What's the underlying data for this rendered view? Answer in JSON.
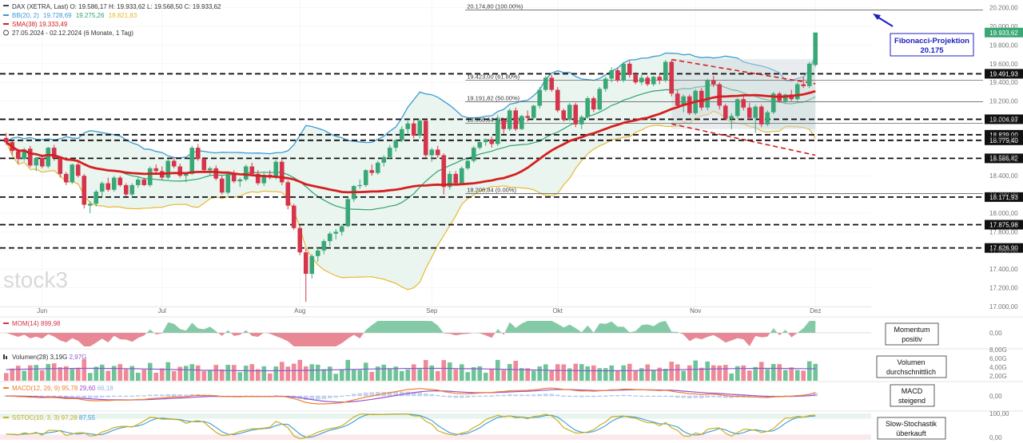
{
  "header": {
    "line1": "DAX (XETRA, Last)  O: 19.586,17  H: 19.933,62  L: 19.568,50  C: 19.933,62",
    "bb_name": "BB(20, 2)",
    "bb_v1": "19.728,69",
    "bb_v2": "19.275,26",
    "bb_v3": "18.821,83",
    "sma_text": "SMA(38)  19.333,49",
    "period_text": "27.05.2024 - 02.12.2024  (6 Monate, 1 Tag)"
  },
  "watermark": "stock3",
  "callouts": {
    "fibonacci": [
      "Fibonacci-Projektion",
      "20.175"
    ],
    "momentum": [
      "Momentum",
      "positiv"
    ],
    "volumen": [
      "Volumen",
      "durchschnittlich"
    ],
    "macd": [
      "MACD",
      "steigend"
    ],
    "stoch": [
      "Slow-Stochastik",
      "überkauft"
    ]
  },
  "colors": {
    "up": "#3aa776",
    "down": "#d4354a",
    "bb": "#3a9bd5",
    "bb_fill": "#e8f4ee",
    "bb_mid": "#2ea36a",
    "bb_lower": "#e8b830",
    "sma": "#d42020",
    "callout": "#2020c0"
  },
  "chart_data": {
    "type": "candlestick",
    "instrument": "DAX (XETRA, Last)",
    "ylim": [
      17000,
      20200
    ],
    "y_ticks": [
      17000,
      17200,
      17400,
      17600,
      17800,
      18000,
      18200,
      18400,
      18600,
      18800,
      19000,
      19200,
      19400,
      19600,
      19800,
      20000,
      20200
    ],
    "y_tick_labels": [
      "17.000,00",
      "17.200,00",
      "17.400,00",
      "17.600,00",
      "17.800,00",
      "18.000,00",
      "18.200,00",
      "18.400,00",
      "18.600,00",
      "18.800,00",
      "19.000,00",
      "19.200,00",
      "19.400,00",
      "19.600,00",
      "19.800,00",
      "20.000,00",
      "20.200,00"
    ],
    "months": [
      {
        "label": "Jun",
        "bar": 6
      },
      {
        "label": "Jul",
        "bar": 26
      },
      {
        "label": "Aug",
        "bar": 49
      },
      {
        "label": "Sep",
        "bar": 71
      },
      {
        "label": "Okt",
        "bar": 92
      },
      {
        "label": "Nov",
        "bar": 115
      },
      {
        "label": "Dez",
        "bar": 135
      }
    ],
    "last_price": {
      "value": 19933.62,
      "label": "19.933,62"
    },
    "hlines": [
      {
        "value": 19491.93,
        "label": "19.491,93"
      },
      {
        "value": 19004.97,
        "label": "19.004,97"
      },
      {
        "value": 18839.0,
        "label": "18.839,00"
      },
      {
        "value": 18779.4,
        "label": "18.779,40"
      },
      {
        "value": 18586.42,
        "label": "18.586,42"
      },
      {
        "value": 18171.93,
        "label": "18.171,93"
      },
      {
        "value": 17875.98,
        "label": "17.875,98"
      },
      {
        "value": 17626.9,
        "label": "17.626,90"
      }
    ],
    "fib_levels": [
      {
        "value": 20174.8,
        "label": "20.174,80 (100.00%)"
      },
      {
        "value": 19423.0,
        "label": "19.423,00 (61.80%)"
      },
      {
        "value": 19191.82,
        "label": "19.191,82 (50.00%)"
      },
      {
        "value": 18960.64,
        "label": "18.960,64 (38.20%)"
      },
      {
        "value": 18208.84,
        "label": "18.208,84 (0.00%)"
      }
    ],
    "fib_start_bar": 77,
    "triangle": {
      "upper": [
        [
          111,
          19645
        ],
        [
          135,
          19385
        ]
      ],
      "lower": [
        [
          111,
          18955
        ],
        [
          135,
          18620
        ]
      ]
    },
    "shaded_box": {
      "from_bar": 111,
      "to_bar": 135,
      "low": 18900,
      "high": 19650
    },
    "candles": [
      [
        18805,
        18860,
        18730,
        18758
      ],
      [
        18760,
        18770,
        18620,
        18665
      ],
      [
        18660,
        18690,
        18530,
        18580
      ],
      [
        18580,
        18700,
        18560,
        18680
      ],
      [
        18690,
        18720,
        18490,
        18510
      ],
      [
        18510,
        18600,
        18450,
        18590
      ],
      [
        18590,
        18610,
        18480,
        18500
      ],
      [
        18500,
        18710,
        18480,
        18700
      ],
      [
        18700,
        18730,
        18560,
        18590
      ],
      [
        18590,
        18610,
        18380,
        18420
      ],
      [
        18420,
        18440,
        18300,
        18330
      ],
      [
        18330,
        18530,
        18310,
        18520
      ],
      [
        18520,
        18550,
        18380,
        18400
      ],
      [
        18400,
        18420,
        18050,
        18090
      ],
      [
        18080,
        18130,
        18000,
        18100
      ],
      [
        18100,
        18250,
        18070,
        18230
      ],
      [
        18230,
        18340,
        18180,
        18320
      ],
      [
        18320,
        18380,
        18230,
        18250
      ],
      [
        18250,
        18400,
        18230,
        18380
      ],
      [
        18380,
        18400,
        18280,
        18300
      ],
      [
        18300,
        18320,
        18180,
        18200
      ],
      [
        18200,
        18320,
        18170,
        18300
      ],
      [
        18300,
        18380,
        18270,
        18360
      ],
      [
        18360,
        18380,
        18290,
        18300
      ],
      [
        18300,
        18500,
        18280,
        18480
      ],
      [
        18480,
        18520,
        18420,
        18450
      ],
      [
        18450,
        18500,
        18360,
        18380
      ],
      [
        18380,
        18580,
        18360,
        18560
      ],
      [
        18560,
        18600,
        18480,
        18500
      ],
      [
        18500,
        18530,
        18380,
        18400
      ],
      [
        18400,
        18440,
        18330,
        18420
      ],
      [
        18420,
        18720,
        18410,
        18700
      ],
      [
        18700,
        18740,
        18560,
        18580
      ],
      [
        18580,
        18600,
        18440,
        18460
      ],
      [
        18460,
        18500,
        18400,
        18480
      ],
      [
        18480,
        18510,
        18350,
        18370
      ],
      [
        18370,
        18400,
        18200,
        18220
      ],
      [
        18220,
        18430,
        18200,
        18420
      ],
      [
        18420,
        18460,
        18320,
        18340
      ],
      [
        18340,
        18380,
        18280,
        18360
      ],
      [
        18360,
        18520,
        18340,
        18500
      ],
      [
        18500,
        18540,
        18400,
        18420
      ],
      [
        18420,
        18460,
        18300,
        18320
      ],
      [
        18320,
        18430,
        18290,
        18410
      ],
      [
        18410,
        18460,
        18360,
        18380
      ],
      [
        18380,
        18570,
        18360,
        18550
      ],
      [
        18550,
        18580,
        18300,
        18330
      ],
      [
        18330,
        18350,
        18040,
        18080
      ],
      [
        18080,
        18100,
        17820,
        17840
      ],
      [
        17840,
        17860,
        17550,
        17580
      ],
      [
        17580,
        17620,
        17050,
        17350
      ],
      [
        17350,
        17560,
        17300,
        17540
      ],
      [
        17540,
        17640,
        17480,
        17600
      ],
      [
        17600,
        17720,
        17560,
        17700
      ],
      [
        17700,
        17800,
        17650,
        17780
      ],
      [
        17780,
        17830,
        17720,
        17800
      ],
      [
        17800,
        17880,
        17760,
        17860
      ],
      [
        17860,
        18170,
        17850,
        18150
      ],
      [
        18150,
        18300,
        18120,
        18290
      ],
      [
        18290,
        18360,
        18260,
        18300
      ],
      [
        18300,
        18470,
        18280,
        18460
      ],
      [
        18460,
        18520,
        18400,
        18430
      ],
      [
        18430,
        18560,
        18410,
        18540
      ],
      [
        18540,
        18620,
        18500,
        18600
      ],
      [
        18600,
        18730,
        18580,
        18700
      ],
      [
        18700,
        18790,
        18660,
        18780
      ],
      [
        18780,
        18930,
        18760,
        18900
      ],
      [
        18900,
        18990,
        18850,
        18960
      ],
      [
        18960,
        19000,
        18800,
        18830
      ],
      [
        18830,
        19010,
        18800,
        18990
      ],
      [
        18990,
        19000,
        18600,
        18620
      ],
      [
        18620,
        18700,
        18550,
        18680
      ],
      [
        18680,
        18720,
        18590,
        18620
      ],
      [
        18620,
        18640,
        18200,
        18280
      ],
      [
        18280,
        18450,
        18250,
        18420
      ],
      [
        18420,
        18450,
        18300,
        18320
      ],
      [
        18320,
        18500,
        18300,
        18480
      ],
      [
        18480,
        18580,
        18460,
        18560
      ],
      [
        18560,
        18720,
        18540,
        18700
      ],
      [
        18700,
        18780,
        18680,
        18760
      ],
      [
        18760,
        18800,
        18720,
        18790
      ],
      [
        18790,
        18820,
        18700,
        18740
      ],
      [
        18740,
        19050,
        18720,
        19000
      ],
      [
        19000,
        19020,
        18850,
        18900
      ],
      [
        18900,
        19120,
        18880,
        19100
      ],
      [
        19100,
        19130,
        18880,
        18900
      ],
      [
        18900,
        19050,
        18890,
        19040
      ],
      [
        19040,
        19100,
        18980,
        19020
      ],
      [
        19020,
        19160,
        19000,
        19150
      ],
      [
        19150,
        19350,
        19120,
        19320
      ],
      [
        19320,
        19470,
        19300,
        19450
      ],
      [
        19450,
        19480,
        19300,
        19320
      ],
      [
        19320,
        19350,
        19080,
        19100
      ],
      [
        19100,
        19120,
        18980,
        19000
      ],
      [
        19000,
        19180,
        18980,
        19160
      ],
      [
        19160,
        19180,
        18920,
        18950
      ],
      [
        18950,
        19050,
        18900,
        19030
      ],
      [
        19030,
        19250,
        19010,
        19230
      ],
      [
        19230,
        19250,
        19080,
        19110
      ],
      [
        19110,
        19350,
        19100,
        19330
      ],
      [
        19330,
        19460,
        19300,
        19440
      ],
      [
        19440,
        19560,
        19400,
        19530
      ],
      [
        19530,
        19560,
        19400,
        19420
      ],
      [
        19420,
        19620,
        19400,
        19600
      ],
      [
        19600,
        19630,
        19450,
        19480
      ],
      [
        19480,
        19510,
        19380,
        19400
      ],
      [
        19400,
        19480,
        19370,
        19450
      ],
      [
        19450,
        19470,
        19360,
        19380
      ],
      [
        19380,
        19470,
        19360,
        19460
      ],
      [
        19460,
        19490,
        19380,
        19420
      ],
      [
        19420,
        19640,
        19400,
        19620
      ],
      [
        19620,
        19640,
        19250,
        19280
      ],
      [
        19280,
        19320,
        19120,
        19150
      ],
      [
        19150,
        19270,
        19080,
        19250
      ],
      [
        19250,
        19270,
        19050,
        19070
      ],
      [
        19070,
        19330,
        19050,
        19310
      ],
      [
        19310,
        19340,
        19100,
        19130
      ],
      [
        19130,
        19440,
        19100,
        19420
      ],
      [
        19420,
        19470,
        19350,
        19380
      ],
      [
        19380,
        19400,
        19110,
        19150
      ],
      [
        19150,
        19170,
        19000,
        19010
      ],
      [
        19010,
        19070,
        18900,
        19040
      ],
      [
        19040,
        19230,
        19010,
        19220
      ],
      [
        19220,
        19260,
        19100,
        19130
      ],
      [
        19130,
        19180,
        19000,
        19020
      ],
      [
        19020,
        19160,
        18860,
        19140
      ],
      [
        19140,
        19160,
        18920,
        18950
      ],
      [
        18950,
        19100,
        18930,
        19080
      ],
      [
        19080,
        19300,
        19060,
        19280
      ],
      [
        19280,
        19300,
        19180,
        19200
      ],
      [
        19200,
        19280,
        19180,
        19270
      ],
      [
        19270,
        19320,
        19200,
        19220
      ],
      [
        19220,
        19400,
        19200,
        19380
      ],
      [
        19380,
        19460,
        19340,
        19360
      ],
      [
        19360,
        19620,
        19340,
        19600
      ],
      [
        19586.17,
        19933.62,
        19568.5,
        19933.62
      ]
    ],
    "indicators": [
      {
        "name": "MOM(14)",
        "value": "899,98",
        "panel_labels": [
          "0,00"
        ]
      },
      {
        "name": "Volumen(28)",
        "value": "3,19G",
        "value2": "2,97G",
        "panel_labels": [
          "8,00G",
          "6,00G",
          "4,00G",
          "2,00G"
        ]
      },
      {
        "name": "MACD(12, 26, 9)",
        "value": "95,78",
        "value2": "29,60",
        "value3": "66,18",
        "panel_labels": [
          "0,00"
        ]
      },
      {
        "name": "SSTOC(10, 3, 3)",
        "value": "97,28",
        "value2": "87,55",
        "panel_labels": [
          "100,00",
          "0,00"
        ]
      }
    ]
  }
}
